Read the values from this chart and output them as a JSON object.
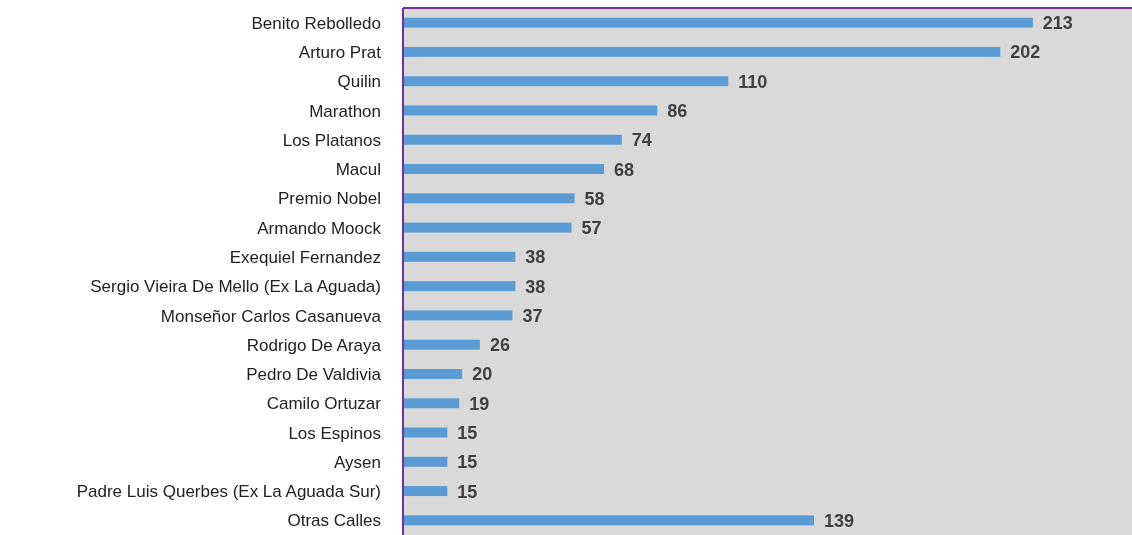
{
  "chart_data": {
    "type": "bar",
    "orientation": "horizontal",
    "relative": false,
    "data_labels": true,
    "color": "#5b9bd5",
    "categories": [
      "Benito Rebolledo",
      "Arturo Prat",
      "Quilin",
      "Marathon",
      "Los Platanos",
      "Macul",
      "Premio Nobel",
      "Armando Moock",
      "Exequiel Fernandez",
      "Sergio Vieira De Mello (Ex La Aguada)",
      "Monseñor Carlos Casanueva",
      "Rodrigo De Araya",
      "Pedro De Valdivia",
      "Camilo Ortuzar",
      "Los Espinos",
      "Aysen",
      "Padre Luis Querbes (Ex La Aguada Sur)",
      "Otras Calles"
    ],
    "values": [
      213,
      202,
      110,
      86,
      74,
      68,
      58,
      57,
      38,
      38,
      37,
      26,
      20,
      19,
      15,
      15,
      15,
      139
    ]
  }
}
